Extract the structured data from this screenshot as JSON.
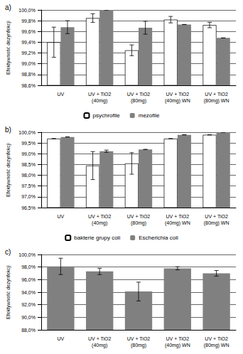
{
  "chart_data": [
    {
      "type": "bar",
      "title": "a)",
      "y_label": "Efektywność dezynfekcji",
      "categories": [
        "UV",
        "UV + TiO2\n(40mg)",
        "UV + TiO2\n(80mg)",
        "UV + TiO2\n(40mg) WN",
        "UV + TiO2\n(80mg) WN"
      ],
      "series": [
        {
          "name": "psychrofile",
          "color": "#ffffff",
          "values": [
            99.4,
            99.85,
            99.25,
            99.82,
            99.72
          ],
          "errors": [
            0.28,
            0.08,
            0.1,
            0.06,
            0.05
          ]
        },
        {
          "name": "mezofile",
          "color": "#808080",
          "values": [
            99.68,
            100.0,
            99.67,
            99.73,
            99.48
          ],
          "errors": [
            0.12,
            0.0,
            0.12,
            0.0,
            0.0
          ]
        }
      ],
      "ylim": [
        98.6,
        100.0
      ],
      "yticks": [
        {
          "value": 98.6,
          "label": "98,6%"
        },
        {
          "value": 98.8,
          "label": "98,8%"
        },
        {
          "value": 99.0,
          "label": "99,0%"
        },
        {
          "value": 99.2,
          "label": "99,2%"
        },
        {
          "value": 99.4,
          "label": "99,4%"
        },
        {
          "value": 99.6,
          "label": "99,6%"
        },
        {
          "value": 99.8,
          "label": "99,8%"
        },
        {
          "value": 100.0,
          "label": "100,0%"
        }
      ],
      "grid": true,
      "legend": "bottom"
    },
    {
      "type": "bar",
      "title": "b)",
      "y_label": "Efektywność dezynfekcji",
      "categories": [
        "UV",
        "UV + TiO2\n(40mg)",
        "UV + TiO2\n(80mg)",
        "UV + TiO2\n(40mg) WN",
        "UV + TiO2\n(80mg) WN"
      ],
      "series": [
        {
          "name": "bakterie grupy coli",
          "color": "#ffffff",
          "values": [
            99.7,
            98.45,
            98.55,
            99.7,
            99.88
          ],
          "errors": [
            0.0,
            0.65,
            0.5,
            0.0,
            0.0
          ]
        },
        {
          "name": "Escherichia coli",
          "color": "#808080",
          "values": [
            99.78,
            99.12,
            99.2,
            99.88,
            100.0
          ],
          "errors": [
            0.0,
            0.05,
            0.0,
            0.0,
            0.0
          ]
        }
      ],
      "ylim": [
        96.5,
        100.0
      ],
      "yticks": [
        {
          "value": 96.5,
          "label": "96,5%"
        },
        {
          "value": 97.0,
          "label": "97,0%"
        },
        {
          "value": 97.5,
          "label": "97,5%"
        },
        {
          "value": 98.0,
          "label": "98,0%"
        },
        {
          "value": 98.5,
          "label": "98,5%"
        },
        {
          "value": 99.0,
          "label": "99,0%"
        },
        {
          "value": 99.5,
          "label": "99,5%"
        },
        {
          "value": 100.0,
          "label": "100,0%"
        }
      ],
      "grid": true,
      "legend": "bottom"
    },
    {
      "type": "bar",
      "title": "c)",
      "y_label": "Efektywność dezynfekcji",
      "categories": [
        "UV",
        "UV + TiO2\n(40mg)",
        "UV + TiO2\n(80mg)",
        "UV + TiO2\n(40mg) WN",
        "UV + TiO2\n(80mg) WN"
      ],
      "series": [
        {
          "color": "#808080",
          "values": [
            98.1,
            97.3,
            94.1,
            97.8,
            97.0
          ],
          "errors": [
            1.3,
            0.5,
            1.5,
            0.25,
            0.45
          ]
        }
      ],
      "ylim": [
        88.0,
        100.0
      ],
      "yticks": [
        {
          "value": 88.0,
          "label": "88,0%"
        },
        {
          "value": 90.0,
          "label": "90,0%"
        },
        {
          "value": 92.0,
          "label": "92,0%"
        },
        {
          "value": 94.0,
          "label": "94,0%"
        },
        {
          "value": 96.0,
          "label": "96,0%"
        },
        {
          "value": 98.0,
          "label": "98,0%"
        },
        {
          "value": 100.0,
          "label": "100,0%"
        }
      ],
      "grid": true
    }
  ]
}
